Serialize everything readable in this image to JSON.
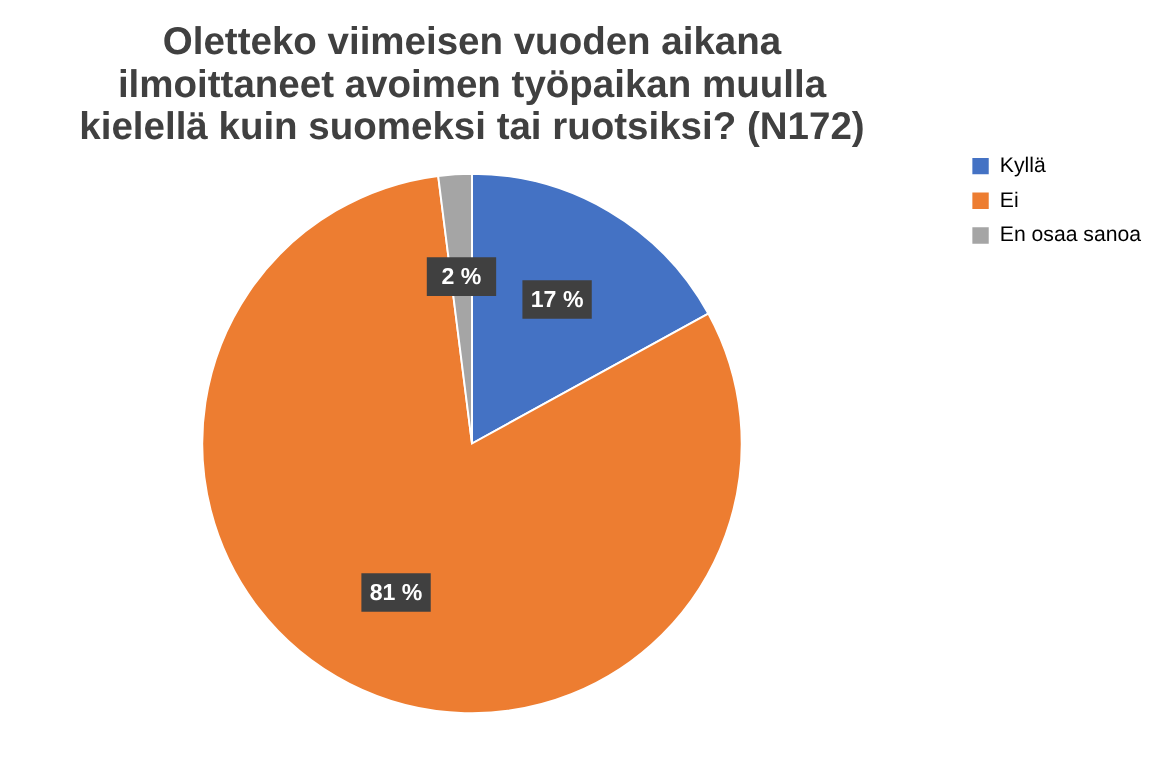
{
  "chart_data": {
    "type": "pie",
    "title": "Oletteko viimeisen vuoden aikana ilmoittaneet avoimen työpaikan muulla kielellä kuin suomeksi tai ruotsiksi? (N172)",
    "categories": [
      "Kyllä",
      "Ei",
      "En osaa sanoa"
    ],
    "values": [
      17,
      81,
      2
    ],
    "colors": [
      "#4472c4",
      "#ed7d31",
      "#a5a5a5"
    ],
    "value_labels": [
      "17 %",
      "81 %",
      "2 %"
    ],
    "legend": "right"
  }
}
